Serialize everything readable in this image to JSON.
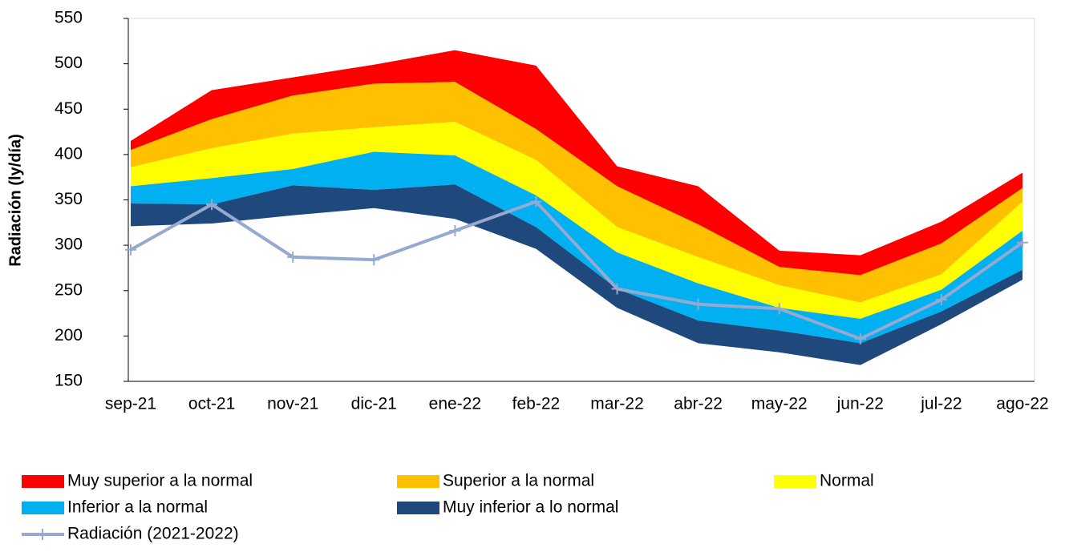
{
  "chart_data": {
    "type": "area_bands",
    "y_label": "Radiación (ly/día)",
    "categories": [
      "sep-21",
      "oct-21",
      "nov-21",
      "dic-21",
      "ene-22",
      "feb-22",
      "mar-22",
      "abr-22",
      "may-22",
      "jun-22",
      "jul-22",
      "ago-22"
    ],
    "ylim": [
      150,
      550
    ],
    "yticks": [
      150,
      200,
      250,
      300,
      350,
      400,
      450,
      500,
      550
    ],
    "grid": false,
    "series": [
      {
        "name": "Muy superior a la normal",
        "color": "#ff0000",
        "values": [
          415,
          471,
          485,
          499,
          515,
          498,
          387,
          365,
          294,
          289,
          326,
          380
        ]
      },
      {
        "name": "Superior a la normal",
        "color": "#ffc000",
        "values": [
          405,
          439,
          465,
          478,
          480,
          428,
          365,
          323,
          276,
          267,
          302,
          363
        ]
      },
      {
        "name": "Normal",
        "color": "#ffff00",
        "values": [
          386,
          407,
          423,
          430,
          436,
          394,
          320,
          287,
          256,
          237,
          268,
          348
        ]
      },
      {
        "name": "Inferior a la normal",
        "color": "#00b0f0",
        "values": [
          365,
          374,
          384,
          403,
          399,
          355,
          292,
          258,
          231,
          219,
          251,
          316
        ]
      },
      {
        "name": "Muy inferior a lo normal",
        "color": "#1f497d",
        "values": [
          346,
          345,
          366,
          361,
          367,
          320,
          252,
          217,
          206,
          192,
          227,
          273
        ],
        "lower": [
          321,
          324,
          333,
          341,
          329,
          296,
          231,
          192,
          182,
          168,
          213,
          262
        ]
      }
    ],
    "line": {
      "name": "Radiación (2021-2022)",
      "color": "#95a9d1",
      "values": [
        295,
        345,
        287,
        284,
        316,
        348,
        252,
        235,
        230,
        197,
        240,
        303
      ]
    }
  }
}
